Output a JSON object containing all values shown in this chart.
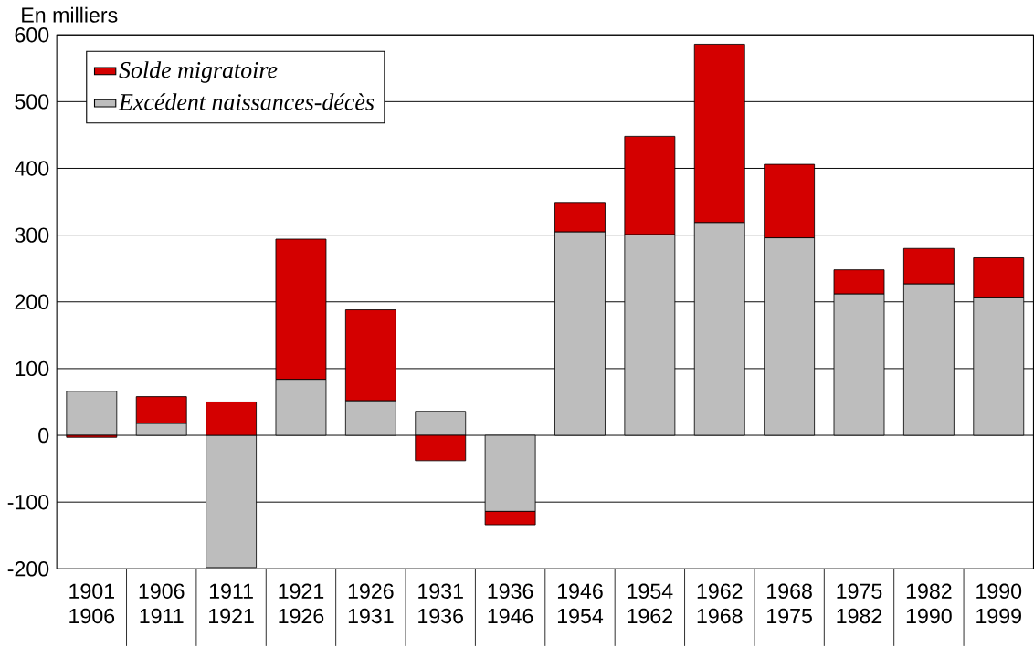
{
  "chart_data": {
    "type": "bar",
    "stacked": true,
    "ylabel": "En milliers",
    "categories": [
      "1901 1906",
      "1906 1911",
      "1911 1921",
      "1921 1926",
      "1926 1931",
      "1931 1936",
      "1936 1946",
      "1946 1954",
      "1954 1962",
      "1962 1968",
      "1968 1975",
      "1975 1982",
      "1982 1990",
      "1990 1999"
    ],
    "series": [
      {
        "name": "Excédent naissances-décès",
        "color": "#bdbdbd",
        "values": [
          66,
          18,
          -198,
          84,
          52,
          36,
          -114,
          305,
          301,
          319,
          296,
          212,
          227,
          206
        ]
      },
      {
        "name": "Solde migratoire",
        "color": "#d40000",
        "values": [
          -3,
          40,
          50,
          210,
          136,
          -38,
          -20,
          44,
          147,
          267,
          110,
          36,
          53,
          60
        ]
      }
    ],
    "ylim": [
      -200,
      600
    ],
    "yticks": [
      -200,
      -100,
      0,
      100,
      200,
      300,
      400,
      500,
      600
    ],
    "grid": "y",
    "legend": "top left"
  }
}
